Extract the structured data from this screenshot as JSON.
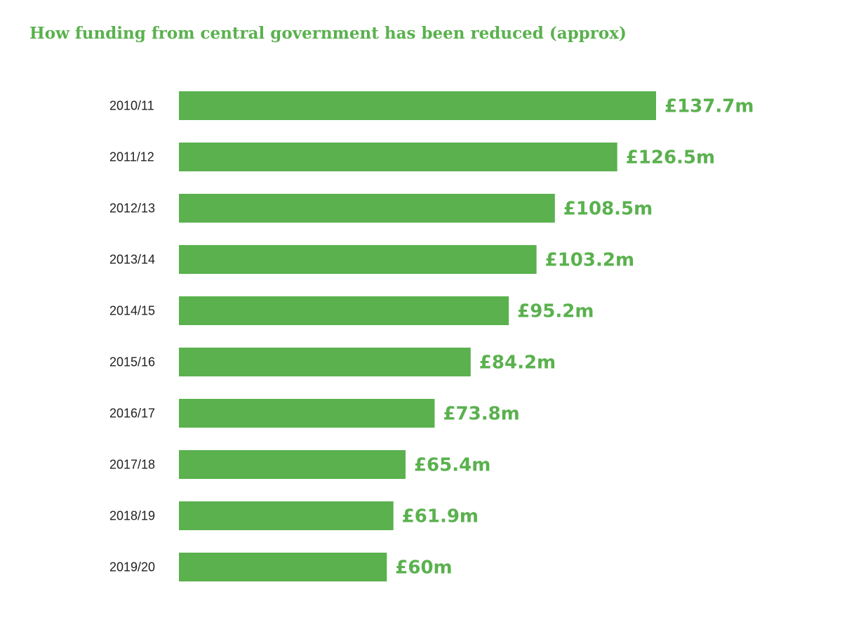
{
  "chart_data": {
    "type": "bar",
    "orientation": "horizontal",
    "title": "How funding from central government has been reduced (approx)",
    "xlabel": "",
    "ylabel": "",
    "unit": "£m",
    "xlim": [
      0,
      137.7
    ],
    "grid": false,
    "legend": "none",
    "categories": [
      "2010/11",
      "2011/12",
      "2012/13",
      "2013/14",
      "2014/15",
      "2015/16",
      "2016/17",
      "2017/18",
      "2018/19",
      "2019/20"
    ],
    "values": [
      137.7,
      126.5,
      108.5,
      103.2,
      95.2,
      84.2,
      73.8,
      65.4,
      61.9,
      60
    ],
    "value_labels": [
      "£137.7m",
      "£126.5m",
      "£108.5m",
      "£103.2m",
      "£95.2m",
      "£84.2m",
      "£73.8m",
      "£65.4m",
      "£61.9m",
      "£60m"
    ],
    "bar_color": "#5ab14e",
    "label_color": "#222222"
  }
}
